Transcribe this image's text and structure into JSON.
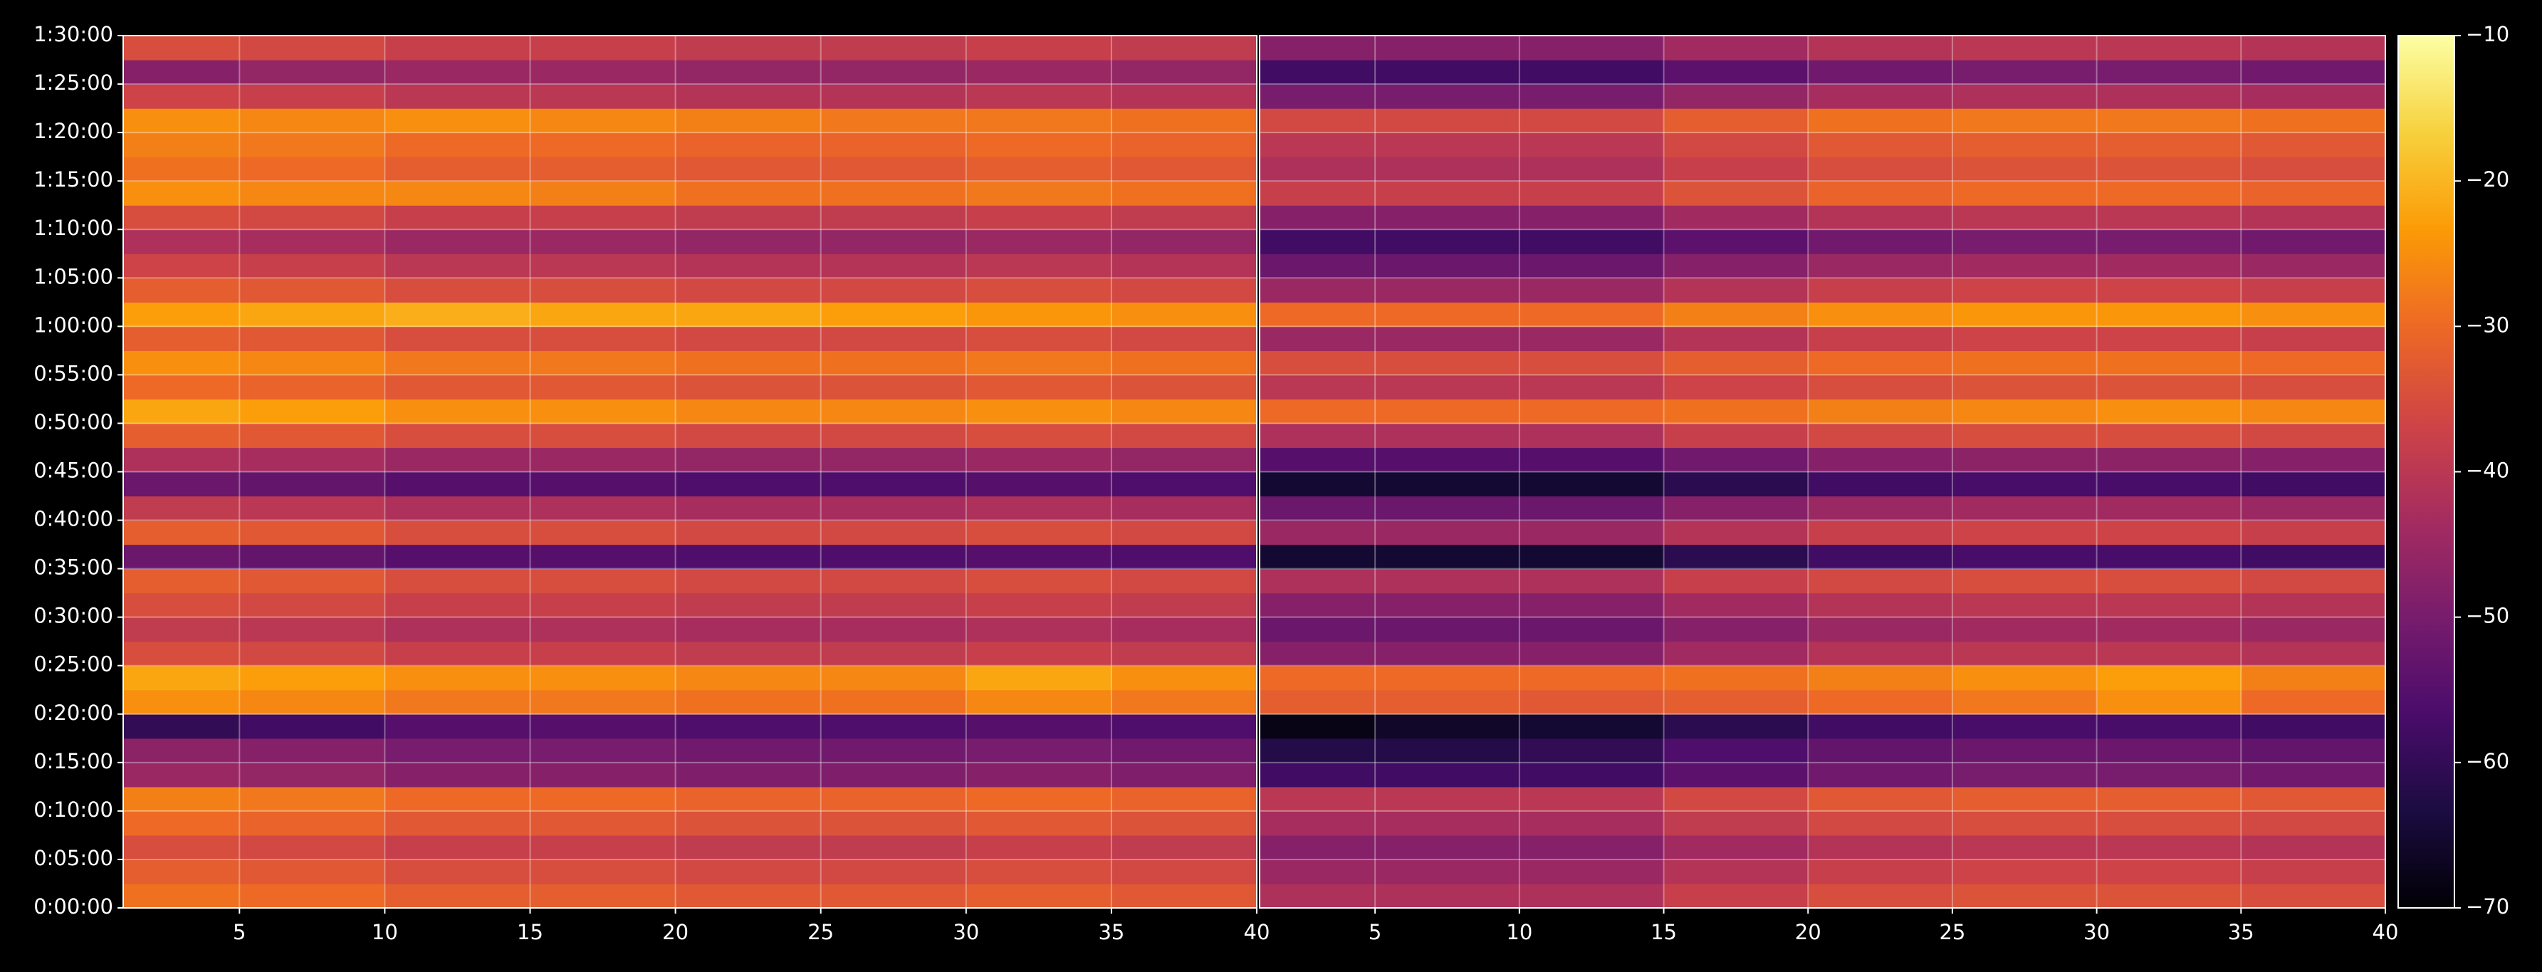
{
  "chart_data": {
    "type": "heatmap",
    "x_edges": [
      1,
      5,
      10,
      15,
      20,
      25,
      30,
      35,
      40
    ],
    "y_edges": [
      0,
      150,
      300,
      450,
      600,
      750,
      900,
      1050,
      1200,
      1350,
      1500,
      1650,
      1800,
      1950,
      2100,
      2250,
      2400,
      2550,
      2700,
      2850,
      3000,
      3150,
      3300,
      3450,
      3600,
      3750,
      3900,
      4050,
      4200,
      4350,
      4500,
      4650,
      4800,
      4950,
      5100,
      5250,
      5400
    ],
    "xlim": [
      1,
      40
    ],
    "ylim": [
      0,
      5400
    ],
    "xticks": [
      5,
      10,
      15,
      20,
      25,
      30,
      35,
      40
    ],
    "yticks": [
      {
        "value": 0,
        "label": "0:00:00"
      },
      {
        "value": 300,
        "label": "0:05:00"
      },
      {
        "value": 600,
        "label": "0:10:00"
      },
      {
        "value": 900,
        "label": "0:15:00"
      },
      {
        "value": 1200,
        "label": "0:20:00"
      },
      {
        "value": 1500,
        "label": "0:25:00"
      },
      {
        "value": 1800,
        "label": "0:30:00"
      },
      {
        "value": 2100,
        "label": "0:35:00"
      },
      {
        "value": 2400,
        "label": "0:40:00"
      },
      {
        "value": 2700,
        "label": "0:45:00"
      },
      {
        "value": 3000,
        "label": "0:50:00"
      },
      {
        "value": 3300,
        "label": "0:55:00"
      },
      {
        "value": 3600,
        "label": "1:00:00"
      },
      {
        "value": 3900,
        "label": "1:05:00"
      },
      {
        "value": 4200,
        "label": "1:10:00"
      },
      {
        "value": 4500,
        "label": "1:15:00"
      },
      {
        "value": 4800,
        "label": "1:20:00"
      },
      {
        "value": 5100,
        "label": "1:25:00"
      },
      {
        "value": 5400,
        "label": "1:30:00"
      }
    ],
    "clim": [
      -70,
      -10
    ],
    "cticks": [
      {
        "value": -10,
        "label": "−10"
      },
      {
        "value": -20,
        "label": "−20"
      },
      {
        "value": -30,
        "label": "−30"
      },
      {
        "value": -40,
        "label": "−40"
      },
      {
        "value": -50,
        "label": "−50"
      },
      {
        "value": -60,
        "label": "−60"
      },
      {
        "value": -70,
        "label": "−70"
      }
    ],
    "colormap": [
      "#000004",
      "#1b0c41",
      "#4a0c6b",
      "#781c6d",
      "#a52c60",
      "#cf4446",
      "#ed6925",
      "#fb9b06",
      "#f7d13d",
      "#fcffa4"
    ],
    "grid": true,
    "panels": [
      {
        "z": [
          [
            -29,
            -30,
            -32,
            -32,
            -33,
            -33,
            -32,
            -33
          ],
          [
            -32,
            -33,
            -35,
            -35,
            -36,
            -36,
            -35,
            -36
          ],
          [
            -35,
            -36,
            -38,
            -38,
            -39,
            -39,
            -38,
            -39
          ],
          [
            -30,
            -31,
            -33,
            -33,
            -34,
            -34,
            -33,
            -34
          ],
          [
            -27,
            -28,
            -30,
            -30,
            -31,
            -31,
            -30,
            -31
          ],
          [
            -45,
            -46,
            -48,
            -48,
            -49,
            -49,
            -48,
            -49
          ],
          [
            -47,
            -48,
            -50,
            -50,
            -51,
            -51,
            -50,
            -51
          ],
          [
            -60,
            -58,
            -55,
            -55,
            -56,
            -56,
            -55,
            -56
          ],
          [
            -25,
            -26,
            -28,
            -28,
            -29,
            -29,
            -26,
            -28
          ],
          [
            -22,
            -23,
            -25,
            -25,
            -26,
            -26,
            -22,
            -25
          ],
          [
            -35,
            -36,
            -38,
            -38,
            -39,
            -39,
            -38,
            -39
          ],
          [
            -39,
            -40,
            -42,
            -42,
            -43,
            -43,
            -42,
            -43
          ],
          [
            -35,
            -36,
            -38,
            -38,
            -39,
            -39,
            -38,
            -39
          ],
          [
            -32,
            -33,
            -35,
            -35,
            -36,
            -36,
            -35,
            -36
          ],
          [
            -52,
            -53,
            -55,
            -55,
            -56,
            -56,
            -55,
            -56
          ],
          [
            -32,
            -33,
            -35,
            -35,
            -36,
            -36,
            -35,
            -36
          ],
          [
            -39,
            -40,
            -42,
            -42,
            -43,
            -43,
            -42,
            -43
          ],
          [
            -52,
            -53,
            -55,
            -55,
            -56,
            -56,
            -55,
            -56
          ],
          [
            -42,
            -43,
            -45,
            -45,
            -46,
            -46,
            -45,
            -46
          ],
          [
            -32,
            -33,
            -35,
            -35,
            -36,
            -36,
            -35,
            -36
          ],
          [
            -22,
            -23,
            -25,
            -25,
            -26,
            -26,
            -25,
            -26
          ],
          [
            -30,
            -31,
            -33,
            -33,
            -34,
            -34,
            -33,
            -34
          ],
          [
            -25,
            -26,
            -28,
            -28,
            -29,
            -29,
            -28,
            -29
          ],
          [
            -32,
            -33,
            -35,
            -35,
            -36,
            -36,
            -35,
            -36
          ],
          [
            -23,
            -22,
            -21,
            -22,
            -22,
            -23,
            -24,
            -25
          ],
          [
            -32,
            -33,
            -35,
            -35,
            -36,
            -36,
            -35,
            -36
          ],
          [
            -37,
            -38,
            -40,
            -40,
            -41,
            -41,
            -40,
            -41
          ],
          [
            -42,
            -43,
            -45,
            -45,
            -46,
            -46,
            -45,
            -46
          ],
          [
            -35,
            -36,
            -38,
            -38,
            -39,
            -39,
            -38,
            -39
          ],
          [
            -25,
            -26,
            -26,
            -27,
            -29,
            -29,
            -28,
            -29
          ],
          [
            -29,
            -30,
            -32,
            -32,
            -33,
            -33,
            -32,
            -33
          ],
          [
            -27,
            -28,
            -30,
            -30,
            -31,
            -31,
            -30,
            -31
          ],
          [
            -25,
            -26,
            -25,
            -26,
            -27,
            -28,
            -28,
            -29
          ],
          [
            -37,
            -38,
            -40,
            -40,
            -41,
            -41,
            -40,
            -41
          ],
          [
            -48,
            -46,
            -45,
            -45,
            -46,
            -46,
            -45,
            -46
          ],
          [
            -35,
            -36,
            -38,
            -38,
            -39,
            -39,
            -38,
            -39
          ]
        ]
      },
      {
        "z": [
          [
            -42,
            -42,
            -42,
            -38,
            -35,
            -34,
            -34,
            -35
          ],
          [
            -45,
            -45,
            -45,
            -41,
            -38,
            -37,
            -37,
            -38
          ],
          [
            -48,
            -48,
            -48,
            -44,
            -41,
            -40,
            -40,
            -41
          ],
          [
            -43,
            -43,
            -43,
            -39,
            -36,
            -35,
            -35,
            -36
          ],
          [
            -40,
            -40,
            -40,
            -36,
            -33,
            -32,
            -32,
            -33
          ],
          [
            -58,
            -58,
            -58,
            -54,
            -51,
            -50,
            -50,
            -51
          ],
          [
            -62,
            -62,
            -60,
            -56,
            -53,
            -52,
            -52,
            -53
          ],
          [
            -68,
            -66,
            -65,
            -61,
            -58,
            -57,
            -57,
            -58
          ],
          [
            -32,
            -32,
            -33,
            -32,
            -30,
            -28,
            -25,
            -30
          ],
          [
            -30,
            -30,
            -30,
            -29,
            -27,
            -25,
            -23,
            -27
          ],
          [
            -48,
            -48,
            -48,
            -44,
            -41,
            -40,
            -40,
            -41
          ],
          [
            -52,
            -52,
            -52,
            -48,
            -45,
            -44,
            -44,
            -45
          ],
          [
            -48,
            -48,
            -48,
            -44,
            -41,
            -40,
            -40,
            -41
          ],
          [
            -42,
            -42,
            -42,
            -38,
            -36,
            -35,
            -35,
            -36
          ],
          [
            -65,
            -65,
            -65,
            -61,
            -58,
            -57,
            -57,
            -58
          ],
          [
            -45,
            -45,
            -45,
            -41,
            -38,
            -37,
            -37,
            -38
          ],
          [
            -52,
            -52,
            -52,
            -48,
            -45,
            -44,
            -44,
            -45
          ],
          [
            -65,
            -65,
            -65,
            -61,
            -58,
            -57,
            -57,
            -58
          ],
          [
            -55,
            -55,
            -55,
            -51,
            -48,
            -47,
            -47,
            -48
          ],
          [
            -42,
            -42,
            -42,
            -38,
            -36,
            -35,
            -35,
            -36
          ],
          [
            -30,
            -30,
            -30,
            -29,
            -27,
            -26,
            -25,
            -26
          ],
          [
            -40,
            -40,
            -40,
            -37,
            -35,
            -34,
            -34,
            -35
          ],
          [
            -35,
            -35,
            -35,
            -32,
            -30,
            -29,
            -29,
            -30
          ],
          [
            -45,
            -45,
            -45,
            -41,
            -38,
            -37,
            -37,
            -38
          ],
          [
            -30,
            -30,
            -30,
            -27,
            -25,
            -24,
            -24,
            -25
          ],
          [
            -45,
            -45,
            -45,
            -41,
            -38,
            -37,
            -37,
            -38
          ],
          [
            -52,
            -52,
            -52,
            -48,
            -45,
            -44,
            -44,
            -45
          ],
          [
            -58,
            -58,
            -58,
            -54,
            -51,
            -50,
            -50,
            -51
          ],
          [
            -48,
            -48,
            -48,
            -44,
            -41,
            -40,
            -40,
            -41
          ],
          [
            -38,
            -38,
            -38,
            -34,
            -31,
            -30,
            -30,
            -31
          ],
          [
            -42,
            -42,
            -42,
            -38,
            -35,
            -34,
            -34,
            -35
          ],
          [
            -40,
            -40,
            -40,
            -36,
            -33,
            -32,
            -32,
            -33
          ],
          [
            -36,
            -36,
            -36,
            -32,
            -29,
            -28,
            -28,
            -29
          ],
          [
            -50,
            -50,
            -50,
            -46,
            -43,
            -42,
            -42,
            -43
          ],
          [
            -58,
            -58,
            -58,
            -54,
            -51,
            -50,
            -50,
            -51
          ],
          [
            -48,
            -48,
            -48,
            -44,
            -41,
            -40,
            -40,
            -41
          ]
        ]
      }
    ]
  }
}
